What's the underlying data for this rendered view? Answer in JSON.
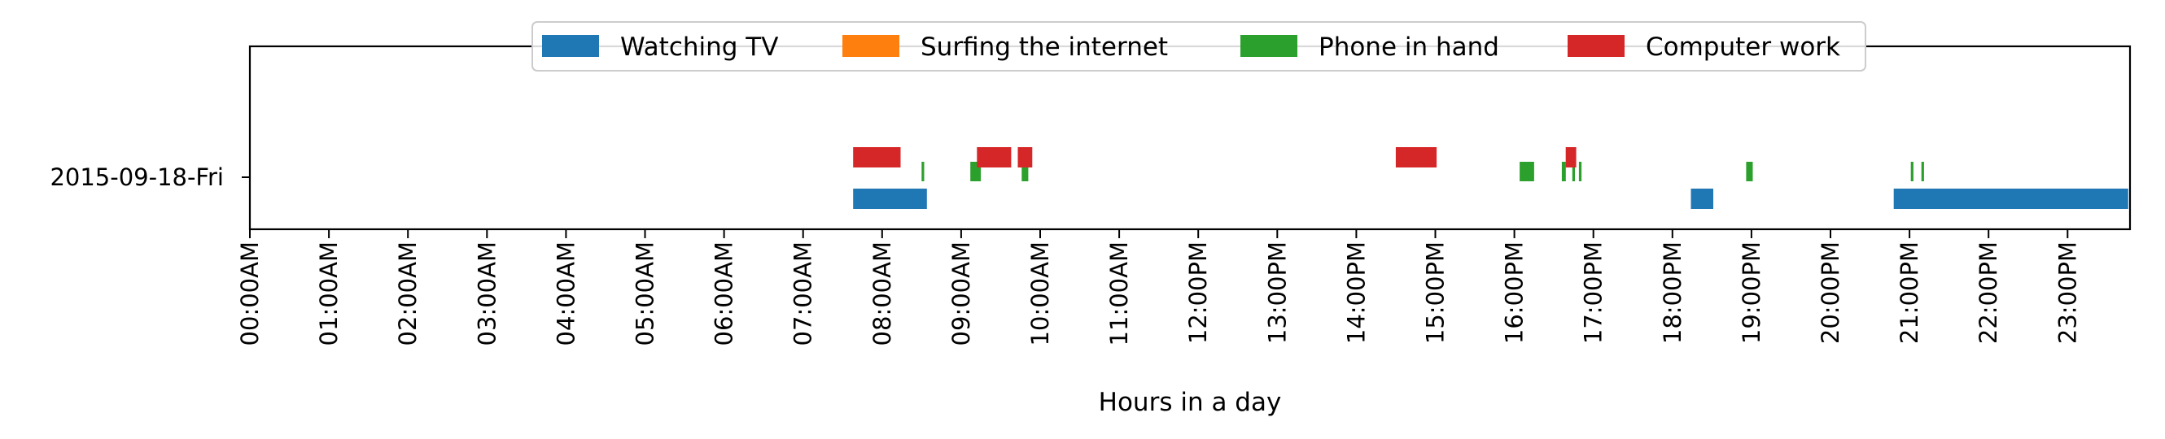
{
  "chart_data": {
    "type": "timeline",
    "xlabel": "Hours in a day",
    "xlim_hours": [
      0,
      24
    ],
    "x_ticks": [
      "00:00AM",
      "01:00AM",
      "02:00AM",
      "03:00AM",
      "04:00AM",
      "05:00AM",
      "06:00AM",
      "07:00AM",
      "08:00AM",
      "09:00AM",
      "10:00AM",
      "11:00AM",
      "12:00PM",
      "13:00PM",
      "14:00PM",
      "15:00PM",
      "16:00PM",
      "17:00PM",
      "18:00PM",
      "19:00PM",
      "20:00PM",
      "21:00PM",
      "22:00PM",
      "23:00PM"
    ],
    "y_categories": [
      "2015-09-18-Fri"
    ],
    "legend_position": "top-center",
    "series": [
      {
        "name": "Watching TV",
        "color": "#1f77b4",
        "intervals": [
          {
            "day": "2015-09-18-Fri",
            "start": "07:38",
            "end": "08:34"
          },
          {
            "day": "2015-09-18-Fri",
            "start": "18:14",
            "end": "18:31"
          },
          {
            "day": "2015-09-18-Fri",
            "start": "20:48",
            "end": "23:46"
          }
        ]
      },
      {
        "name": "Surfing the internet",
        "color": "#ff7f0e",
        "intervals": []
      },
      {
        "name": "Phone in hand",
        "color": "#2ca02c",
        "intervals": [
          {
            "day": "2015-09-18-Fri",
            "start": "08:30",
            "end": "08:32"
          },
          {
            "day": "2015-09-18-Fri",
            "start": "09:07",
            "end": "09:15"
          },
          {
            "day": "2015-09-18-Fri",
            "start": "09:46",
            "end": "09:51"
          },
          {
            "day": "2015-09-18-Fri",
            "start": "16:04",
            "end": "16:15"
          },
          {
            "day": "2015-09-18-Fri",
            "start": "16:36",
            "end": "16:39"
          },
          {
            "day": "2015-09-18-Fri",
            "start": "16:44",
            "end": "16:46"
          },
          {
            "day": "2015-09-18-Fri",
            "start": "16:49",
            "end": "16:51"
          },
          {
            "day": "2015-09-18-Fri",
            "start": "18:56",
            "end": "19:01"
          },
          {
            "day": "2015-09-18-Fri",
            "start": "21:01",
            "end": "21:03"
          },
          {
            "day": "2015-09-18-Fri",
            "start": "21:09",
            "end": "21:11"
          }
        ]
      },
      {
        "name": "Computer work",
        "color": "#d62728",
        "intervals": [
          {
            "day": "2015-09-18-Fri",
            "start": "07:38",
            "end": "08:14"
          },
          {
            "day": "2015-09-18-Fri",
            "start": "09:12",
            "end": "09:38"
          },
          {
            "day": "2015-09-18-Fri",
            "start": "09:43",
            "end": "09:54"
          },
          {
            "day": "2015-09-18-Fri",
            "start": "14:30",
            "end": "15:01"
          },
          {
            "day": "2015-09-18-Fri",
            "start": "16:39",
            "end": "16:47"
          }
        ]
      }
    ]
  }
}
